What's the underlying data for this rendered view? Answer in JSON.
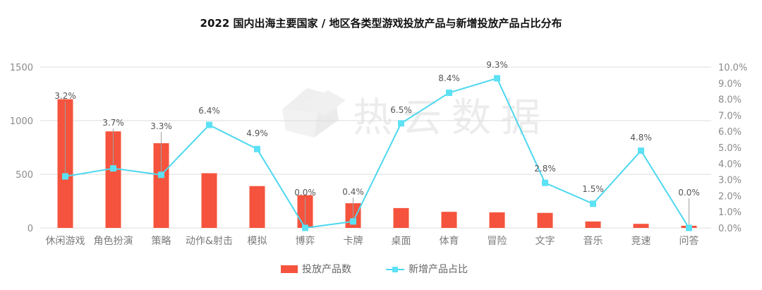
{
  "title": "2022 国内出海主要国家 / 地区各类型游戏投放产品与新增投放产品占比分布",
  "watermark": "热云数据",
  "legend": {
    "bar_label": "投放产品数",
    "line_label": "新增产品占比"
  },
  "colors": {
    "bar": "#f5533d",
    "line": "#4dd8ef",
    "marker": "#5ce1f5",
    "grid": "#dcdcdc",
    "leader": "#a0a0a0"
  },
  "left_axis": {
    "ticks": [
      "0",
      "500",
      "1000",
      "1500"
    ]
  },
  "right_axis": {
    "ticks": [
      "0.0%",
      "1.0%",
      "2.0%",
      "3.0%",
      "4.0%",
      "5.0%",
      "6.0%",
      "7.0%",
      "8.0%",
      "9.0%",
      "10.0%"
    ]
  },
  "chart_data": {
    "type": "bar",
    "title": "2022 国内出海主要国家 / 地区各类型游戏投放产品与新增投放产品占比分布",
    "xlabel": "",
    "ylabel": "",
    "categories": [
      "休闲游戏",
      "角色扮演",
      "策略",
      "动作&射击",
      "模拟",
      "博弈",
      "卡牌",
      "桌面",
      "体育",
      "冒险",
      "文字",
      "音乐",
      "竞速",
      "问答"
    ],
    "series": [
      {
        "name": "投放产品数",
        "type": "bar",
        "axis": "left",
        "values": [
          1200,
          900,
          790,
          510,
          390,
          305,
          230,
          185,
          150,
          145,
          140,
          60,
          38,
          20
        ]
      },
      {
        "name": "新增产品占比",
        "type": "line",
        "axis": "right",
        "values": [
          3.2,
          3.7,
          3.3,
          6.4,
          4.9,
          0.0,
          0.4,
          6.5,
          8.4,
          9.3,
          2.8,
          1.5,
          4.8,
          0.0
        ],
        "labels": [
          "3.2%",
          "3.7%",
          "3.3%",
          "6.4%",
          "4.9%",
          "0.0%",
          "0.4%",
          "6.5%",
          "8.4%",
          "9.3%",
          "2.8%",
          "1.5%",
          "4.8%",
          "0.0%"
        ]
      }
    ],
    "ylim": [
      0,
      1500
    ],
    "y2lim": [
      0,
      10
    ],
    "y_ticks": [
      0,
      500,
      1000,
      1500
    ],
    "y2_ticks": [
      "0.0%",
      "1.0%",
      "2.0%",
      "3.0%",
      "4.0%",
      "5.0%",
      "6.0%",
      "7.0%",
      "8.0%",
      "9.0%",
      "10.0%"
    ],
    "grid": true,
    "legend_position": "bottom"
  }
}
